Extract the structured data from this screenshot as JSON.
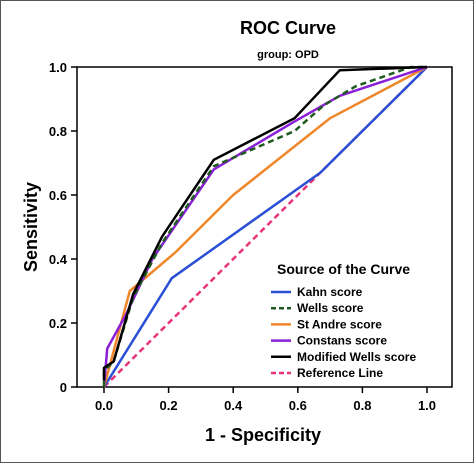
{
  "chart_data": {
    "type": "line",
    "title": "ROC Curve",
    "subtitle": "group: OPD",
    "xlabel": "1 - Specificity",
    "ylabel": "Sensitivity",
    "xlim": [
      0,
      1
    ],
    "ylim": [
      0,
      1
    ],
    "x_ticks": [
      "0.0",
      "0.2",
      "0.4",
      "0.6",
      "0.8",
      "1.0"
    ],
    "y_ticks": [
      "0",
      "0.2",
      "0.4",
      "0.6",
      "0.8",
      "1.0"
    ],
    "grid": false,
    "legend_title": "Source of the Curve",
    "legend_position": "bottom-right",
    "series": [
      {
        "name": "Kahn score",
        "color": "#2a4fd6",
        "dash": "solid",
        "points": [
          [
            0,
            0
          ],
          [
            0.21,
            0.34
          ],
          [
            0.67,
            0.67
          ],
          [
            1,
            1
          ]
        ]
      },
      {
        "name": "Wells score",
        "color": "#1f5a1f",
        "dash": "dashed",
        "points": [
          [
            0,
            0
          ],
          [
            0,
            0.05
          ],
          [
            0.03,
            0.08
          ],
          [
            0.09,
            0.28
          ],
          [
            0.18,
            0.45
          ],
          [
            0.34,
            0.69
          ],
          [
            0.59,
            0.8
          ],
          [
            0.68,
            0.88
          ],
          [
            0.78,
            0.94
          ],
          [
            0.95,
            1
          ],
          [
            1,
            1
          ]
        ]
      },
      {
        "name": "St Andre score",
        "color": "#f0862a",
        "dash": "solid",
        "points": [
          [
            0,
            0
          ],
          [
            0.08,
            0.3
          ],
          [
            0.22,
            0.42
          ],
          [
            0.4,
            0.6
          ],
          [
            0.7,
            0.84
          ],
          [
            1,
            1
          ]
        ]
      },
      {
        "name": "Constans score",
        "color": "#8a1fd8",
        "dash": "solid",
        "points": [
          [
            0,
            0
          ],
          [
            0.01,
            0.12
          ],
          [
            0.07,
            0.23
          ],
          [
            0.15,
            0.4
          ],
          [
            0.34,
            0.68
          ],
          [
            0.59,
            0.83
          ],
          [
            0.73,
            0.91
          ],
          [
            1,
            1
          ]
        ]
      },
      {
        "name": "Modified Wells score",
        "color": "#000000",
        "dash": "solid",
        "points": [
          [
            0,
            0.02
          ],
          [
            0,
            0.06
          ],
          [
            0.03,
            0.08
          ],
          [
            0.09,
            0.29
          ],
          [
            0.18,
            0.47
          ],
          [
            0.34,
            0.71
          ],
          [
            0.59,
            0.84
          ],
          [
            0.73,
            0.99
          ],
          [
            1,
            1
          ]
        ]
      },
      {
        "name": "Reference Line",
        "color": "#e8347a",
        "dash": "dashed",
        "points": [
          [
            0,
            0
          ],
          [
            1,
            1
          ]
        ]
      }
    ]
  }
}
